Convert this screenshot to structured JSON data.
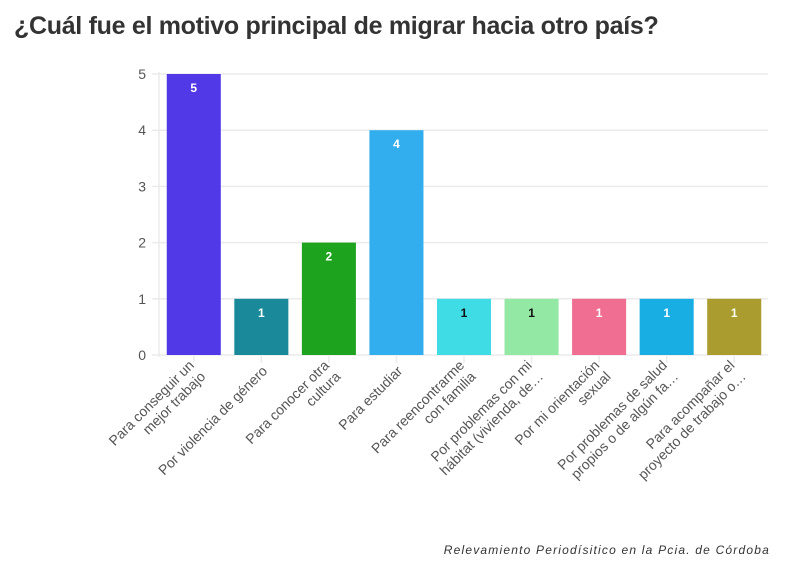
{
  "title": "¿Cuál fue el motivo principal de migrar hacia otro país?",
  "caption": "Relevamiento Periodísitico en la Pcia. de Córdoba",
  "chart_data": {
    "type": "bar",
    "title": "¿Cuál fue el motivo principal de migrar hacia otro país?",
    "xlabel": "",
    "ylabel": "",
    "ylim": [
      0,
      5
    ],
    "yticks": [
      0,
      1,
      2,
      3,
      4,
      5
    ],
    "grid": true,
    "categories": [
      [
        "Para conseguir un",
        "mejor trabajo"
      ],
      [
        "Por violencia de género"
      ],
      [
        "Para conocer otra",
        "cultura"
      ],
      [
        "Para estudiar"
      ],
      [
        "Para reencontrarme",
        "con familia"
      ],
      [
        "Por problemas con mi",
        "hábitat (vivienda, de…"
      ],
      [
        "Por mi orientación",
        "sexual"
      ],
      [
        "Por problemas de salud",
        "propios o de algún fa…"
      ],
      [
        "Para acompañar el",
        "proyecto de trabajo o…"
      ]
    ],
    "values": [
      5,
      1,
      2,
      4,
      1,
      1,
      1,
      1,
      1
    ],
    "colors": [
      "#5239e8",
      "#1a8a9a",
      "#1ea31e",
      "#32aeee",
      "#40dce6",
      "#93e9a4",
      "#f06e92",
      "#18ade3",
      "#aa9c2e"
    ],
    "label_colors": [
      "#ffffff",
      "#ffffff",
      "#ffffff",
      "#ffffff",
      "#111111",
      "#111111",
      "#ffffff",
      "#ffffff",
      "#ffffff"
    ]
  }
}
